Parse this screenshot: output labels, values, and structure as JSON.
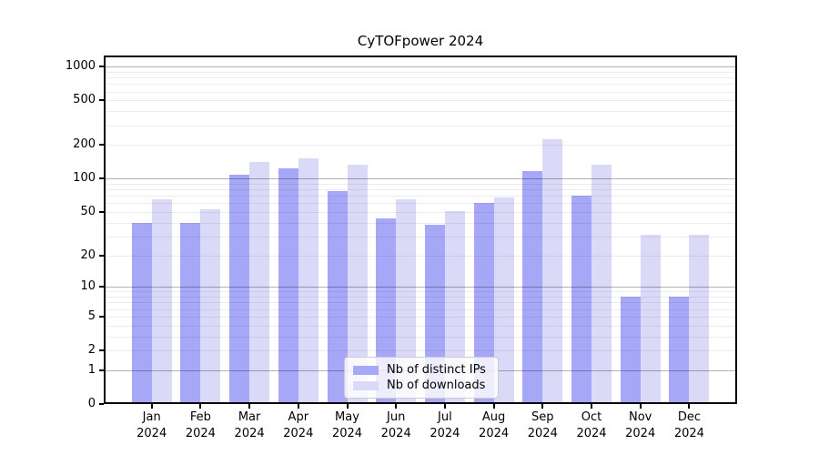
{
  "title": "CyTOFpower 2024",
  "chart_data": {
    "type": "bar",
    "title": "CyTOFpower 2024",
    "categories": [
      "Jan",
      "Feb",
      "Mar",
      "Apr",
      "May",
      "Jun",
      "Jul",
      "Aug",
      "Sep",
      "Oct",
      "Nov",
      "Dec"
    ],
    "category_year": "2024",
    "series": [
      {
        "name": "Nb of distinct IPs",
        "color": "#a7a7f7",
        "values": [
          40,
          40,
          108,
          125,
          77,
          44,
          38,
          61,
          118,
          70,
          8,
          8
        ]
      },
      {
        "name": "Nb of downloads",
        "color": "#dadaf8",
        "values": [
          65,
          53,
          140,
          152,
          133,
          65,
          51,
          68,
          225,
          134,
          31,
          31
        ]
      }
    ],
    "xlabel": "",
    "ylabel": "",
    "yscale": "log1p",
    "ylim": [
      0,
      1259
    ],
    "y_ticks": [
      {
        "value": 0,
        "label": "0"
      },
      {
        "value": 1,
        "label": "1"
      },
      {
        "value": 2,
        "label": "2"
      },
      {
        "value": 5,
        "label": "5"
      },
      {
        "value": 10,
        "label": "10"
      },
      {
        "value": 20,
        "label": "20"
      },
      {
        "value": 50,
        "label": "50"
      },
      {
        "value": 100,
        "label": "100"
      },
      {
        "value": 200,
        "label": "200"
      },
      {
        "value": 500,
        "label": "500"
      },
      {
        "value": 1000,
        "label": "1000"
      }
    ],
    "major_gridlines": [
      1,
      10,
      100,
      1000
    ],
    "minor_gridlines": [
      3,
      4,
      6,
      7,
      8,
      9,
      30,
      40,
      60,
      70,
      80,
      90,
      300,
      400,
      600,
      700,
      800,
      900
    ],
    "grid": true,
    "legend": {
      "position": "lower center",
      "entries": [
        "Nb of distinct IPs",
        "Nb of downloads"
      ]
    }
  }
}
